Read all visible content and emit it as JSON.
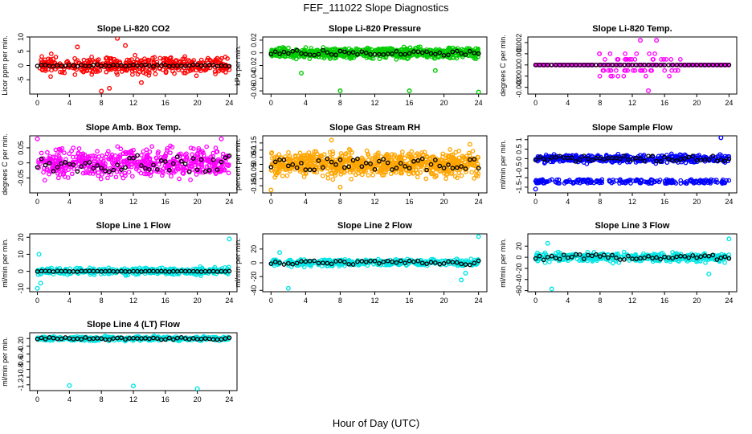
{
  "figure": {
    "title": "FEF_111022  Slope Diagnostics",
    "xlabel": "Hour of Day (UTC)"
  },
  "chart_data": [
    {
      "type": "scatter",
      "title": "Slope Li-820 CO2",
      "ylabel": "Licor ppm per min.",
      "xlim": [
        0,
        24
      ],
      "ylim": [
        -10,
        10
      ],
      "yticks": [
        -5,
        0,
        5,
        10
      ],
      "xticks": [
        0,
        4,
        8,
        12,
        16,
        20,
        24
      ],
      "color": "#ff0000",
      "spread": 2.2,
      "outliers": [
        [
          8,
          -9
        ],
        [
          10,
          9.5
        ],
        [
          11,
          7
        ],
        [
          5,
          6.5
        ],
        [
          13,
          -6
        ],
        [
          9,
          -8
        ]
      ],
      "black_spread": 0.3,
      "n": 420,
      "seed": 11
    },
    {
      "type": "scatter",
      "title": "Slope Li-820 Pressure",
      "ylabel": "kPa per min.",
      "xlim": [
        0,
        24
      ],
      "ylim": [
        -0.065,
        0.025
      ],
      "yticks": [
        -0.06,
        -0.04,
        -0.02,
        0,
        0.02
      ],
      "xticks": [
        0,
        4,
        8,
        12,
        16,
        20,
        24
      ],
      "color": "#00cc00",
      "spread": 0.006,
      "outliers": [
        [
          8,
          -0.06
        ],
        [
          16,
          -0.06
        ],
        [
          24,
          -0.062
        ],
        [
          3.5,
          -0.032
        ],
        [
          19,
          -0.028
        ]
      ],
      "black_spread": 0.004,
      "n": 700,
      "seed": 22
    },
    {
      "type": "scatter",
      "title": "Slope Li-820 Temp.",
      "ylabel": "degrees C per min.",
      "xlim": [
        0,
        24
      ],
      "ylim": [
        -0.0026,
        0.0025
      ],
      "yticks": [
        -0.002,
        -0.001,
        0,
        0.001,
        0.002
      ],
      "xticks": [
        0,
        4,
        8,
        12,
        16,
        20,
        24
      ],
      "color": "#ff00ff",
      "spread": 0.0007,
      "outliers": [
        [
          13,
          0.0022
        ],
        [
          15,
          0.0022
        ],
        [
          14,
          -0.0023
        ]
      ],
      "black_spread": 0,
      "n": 260,
      "seed": 33
    },
    {
      "type": "scatter",
      "title": "Slope Amb. Box Temp.",
      "ylabel": "degrees C per min.",
      "xlim": [
        0,
        24
      ],
      "ylim": [
        -0.1,
        0.09
      ],
      "yticks": [
        -0.05,
        0,
        0.05
      ],
      "xticks": [
        0,
        4,
        8,
        12,
        16,
        20,
        24
      ],
      "color": "#ff00ff",
      "spread": 0.035,
      "outliers": [
        [
          0,
          0.08
        ],
        [
          23,
          0.08
        ]
      ],
      "black_spread": 0.03,
      "n": 560,
      "seed": 44
    },
    {
      "type": "scatter",
      "title": "Slope Gas Stream RH",
      "ylabel": "percent per min.",
      "xlim": [
        0,
        24
      ],
      "ylim": [
        -0.2,
        0.2
      ],
      "yticks": [
        -0.15,
        -0.1,
        -0.05,
        0,
        0.05,
        0.1,
        0.15
      ],
      "xticks": [
        0,
        4,
        8,
        12,
        16,
        20,
        24
      ],
      "color": "#ffa500",
      "spread": 0.06,
      "outliers": [
        [
          0,
          -0.18
        ],
        [
          7,
          0.17
        ],
        [
          8,
          -0.16
        ],
        [
          23,
          0.14
        ]
      ],
      "black_spread": 0.04,
      "n": 820,
      "seed": 55
    },
    {
      "type": "scatter",
      "title": "Slope Sample Flow",
      "ylabel": "ml/min per min.",
      "xlim": [
        0,
        24
      ],
      "ylim": [
        -1.8,
        1.2
      ],
      "yticks": [
        -1.5,
        -1.0,
        -0.5,
        0,
        0.5,
        1.0
      ],
      "xticks": [
        0,
        4,
        8,
        12,
        16,
        20,
        24
      ],
      "color": "#0000ff",
      "spread": 0.15,
      "outliers": [
        [
          0,
          -1.6
        ],
        [
          23,
          1.1
        ]
      ],
      "black_spread": 0.15,
      "n": 600,
      "seed": 66,
      "band2": -1.2
    },
    {
      "type": "scatter",
      "title": "Slope Line 1 Flow",
      "ylabel": "ml/min per min.",
      "xlim": [
        0,
        24
      ],
      "ylim": [
        -12,
        22
      ],
      "yticks": [
        -10,
        0,
        10,
        20
      ],
      "xticks": [
        0,
        4,
        8,
        12,
        16,
        20,
        24
      ],
      "color": "#00e5e5",
      "spread": 1.5,
      "outliers": [
        [
          0,
          -10
        ],
        [
          0.2,
          10
        ],
        [
          24,
          19
        ],
        [
          0.4,
          -7
        ]
      ],
      "black_spread": 0.2,
      "n": 380,
      "seed": 77
    },
    {
      "type": "scatter",
      "title": "Slope Line 2 Flow",
      "ylabel": "ml/min per min.",
      "xlim": [
        0,
        24
      ],
      "ylim": [
        -42,
        42
      ],
      "yticks": [
        -40,
        -20,
        0,
        20
      ],
      "xticks": [
        0,
        4,
        8,
        12,
        16,
        20,
        24
      ],
      "color": "#00e5e5",
      "spread": 3.5,
      "outliers": [
        [
          2,
          -37
        ],
        [
          22,
          -25
        ],
        [
          24,
          38
        ],
        [
          1,
          15
        ],
        [
          22.5,
          -15
        ]
      ],
      "black_spread": 3,
      "n": 380,
      "seed": 88
    },
    {
      "type": "scatter",
      "title": "Slope Line 3 Flow",
      "ylabel": "ml/min per min.",
      "xlim": [
        0,
        24
      ],
      "ylim": [
        -62,
        42
      ],
      "yticks": [
        -60,
        -40,
        -20,
        0,
        20
      ],
      "xticks": [
        0,
        4,
        8,
        12,
        16,
        20,
        24
      ],
      "color": "#00e5e5",
      "spread": 6,
      "outliers": [
        [
          2,
          -57
        ],
        [
          21.5,
          -30
        ],
        [
          24,
          33
        ],
        [
          1.5,
          25
        ]
      ],
      "black_spread": 5,
      "n": 380,
      "seed": 99
    },
    {
      "type": "scatter",
      "title": "Slope Line 4 (LT) Flow",
      "ylabel": "ml/min per min.",
      "xlim": [
        0,
        24
      ],
      "ylim": [
        -1.35,
        0.15
      ],
      "yticks": [
        -1.2,
        -1.0,
        -0.8,
        -0.6,
        -0.4,
        -0.2,
        0.0
      ],
      "xticks": [
        0,
        4,
        8,
        12,
        16,
        20,
        24
      ],
      "color": "#00e5e5",
      "spread": 0.04,
      "outliers": [
        [
          4,
          -1.22
        ],
        [
          12,
          -1.23
        ],
        [
          20,
          -1.3
        ]
      ],
      "black_spread": 0.03,
      "n": 380,
      "seed": 111
    }
  ]
}
